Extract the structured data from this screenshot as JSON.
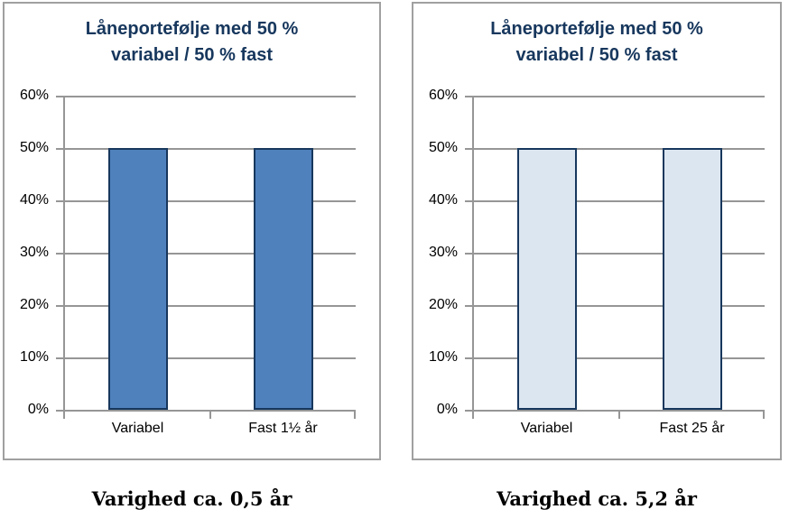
{
  "colors": {
    "title_text": "#17375d",
    "axis_and_grid": "#969696",
    "panel_border": "#a0a0a0",
    "caption_text": "#000000",
    "background": "#ffffff",
    "left_bar_fill": "#4f81bd",
    "right_bar_fill": "#dce6f1",
    "bar_border": "#17375d"
  },
  "chart_data": [
    {
      "type": "bar",
      "title": "Låneportefølje med 50 % variabel / 50 % fast",
      "title_lines": [
        "Låneportefølje med 50 %",
        "variabel / 50 % fast"
      ],
      "categories": [
        "Variabel",
        "Fast 1½ år"
      ],
      "values": [
        50,
        50
      ],
      "ylim": [
        0,
        60
      ],
      "ytick_values": [
        0,
        10,
        20,
        30,
        40,
        50,
        60
      ],
      "ytick_labels": [
        "0%",
        "10%",
        "20%",
        "30%",
        "40%",
        "50%",
        "60%"
      ],
      "grid": true,
      "legend": false,
      "bar_fill": "#4f81bd",
      "bar_border": "#17375d",
      "caption": "Varighed ca. 0,5 år"
    },
    {
      "type": "bar",
      "title": "Låneportefølje med 50 % variabel / 50 % fast",
      "title_lines": [
        "Låneportefølje med 50 %",
        "variabel / 50 % fast"
      ],
      "categories": [
        "Variabel",
        "Fast 25 år"
      ],
      "values": [
        50,
        50
      ],
      "ylim": [
        0,
        60
      ],
      "ytick_values": [
        0,
        10,
        20,
        30,
        40,
        50,
        60
      ],
      "ytick_labels": [
        "0%",
        "10%",
        "20%",
        "30%",
        "40%",
        "50%",
        "60%"
      ],
      "grid": true,
      "legend": false,
      "bar_fill": "#dce6f1",
      "bar_border": "#17375d",
      "caption": "Varighed ca. 5,2 år"
    }
  ]
}
